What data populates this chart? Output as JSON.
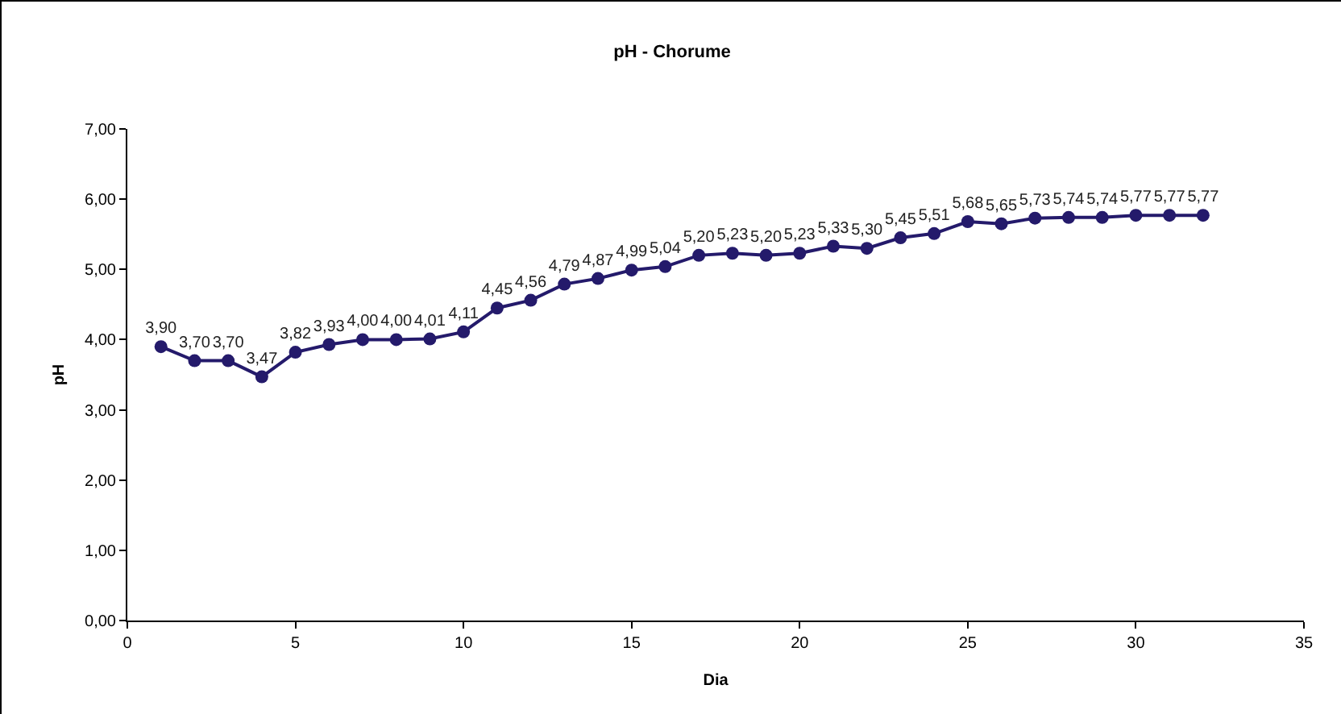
{
  "chart_data": {
    "type": "line",
    "title": "pH - Chorume",
    "xlabel": "Dia",
    "ylabel": "pH",
    "x": [
      1,
      2,
      3,
      4,
      5,
      6,
      7,
      8,
      9,
      10,
      11,
      12,
      13,
      14,
      15,
      16,
      17,
      18,
      19,
      20,
      21,
      22,
      23,
      24,
      25,
      26,
      27,
      28,
      29,
      30,
      31,
      32
    ],
    "series": [
      {
        "color": "#241a6b",
        "values": [
          3.9,
          3.7,
          3.7,
          3.47,
          3.82,
          3.93,
          4.0,
          4.0,
          4.01,
          4.11,
          4.45,
          4.56,
          4.79,
          4.87,
          4.99,
          5.04,
          5.2,
          5.23,
          5.2,
          5.23,
          5.33,
          5.3,
          5.45,
          5.51,
          5.68,
          5.65,
          5.73,
          5.74,
          5.74,
          5.77,
          5.77,
          5.77
        ],
        "value_labels": [
          "3,90",
          "3,70",
          "3,70",
          "3,47",
          "3,82",
          "3,93",
          "4,00",
          "4,00",
          "4,01",
          "4,11",
          "4,45",
          "4,56",
          "4,79",
          "4,87",
          "4,99",
          "5,04",
          "5,20",
          "5,23",
          "5,20",
          "5,23",
          "5,33",
          "5,30",
          "5,45",
          "5,51",
          "5,68",
          "5,65",
          "5,73",
          "5,74",
          "5,74",
          "5,77",
          "5,77",
          "5,77"
        ]
      }
    ],
    "xlim": [
      0,
      35
    ],
    "xticks": [
      0,
      5,
      10,
      15,
      20,
      25,
      30,
      35
    ],
    "ylim": [
      0,
      7
    ],
    "yticks": [
      {
        "value": 0,
        "label": "0,00"
      },
      {
        "value": 1,
        "label": "1,00"
      },
      {
        "value": 2,
        "label": "2,00"
      },
      {
        "value": 3,
        "label": "3,00"
      },
      {
        "value": 4,
        "label": "4,00"
      },
      {
        "value": 5,
        "label": "5,00"
      },
      {
        "value": 6,
        "label": "6,00"
      },
      {
        "value": 7,
        "label": "7,00"
      }
    ],
    "grid": false,
    "marker": "circle",
    "line_style": "solid"
  }
}
